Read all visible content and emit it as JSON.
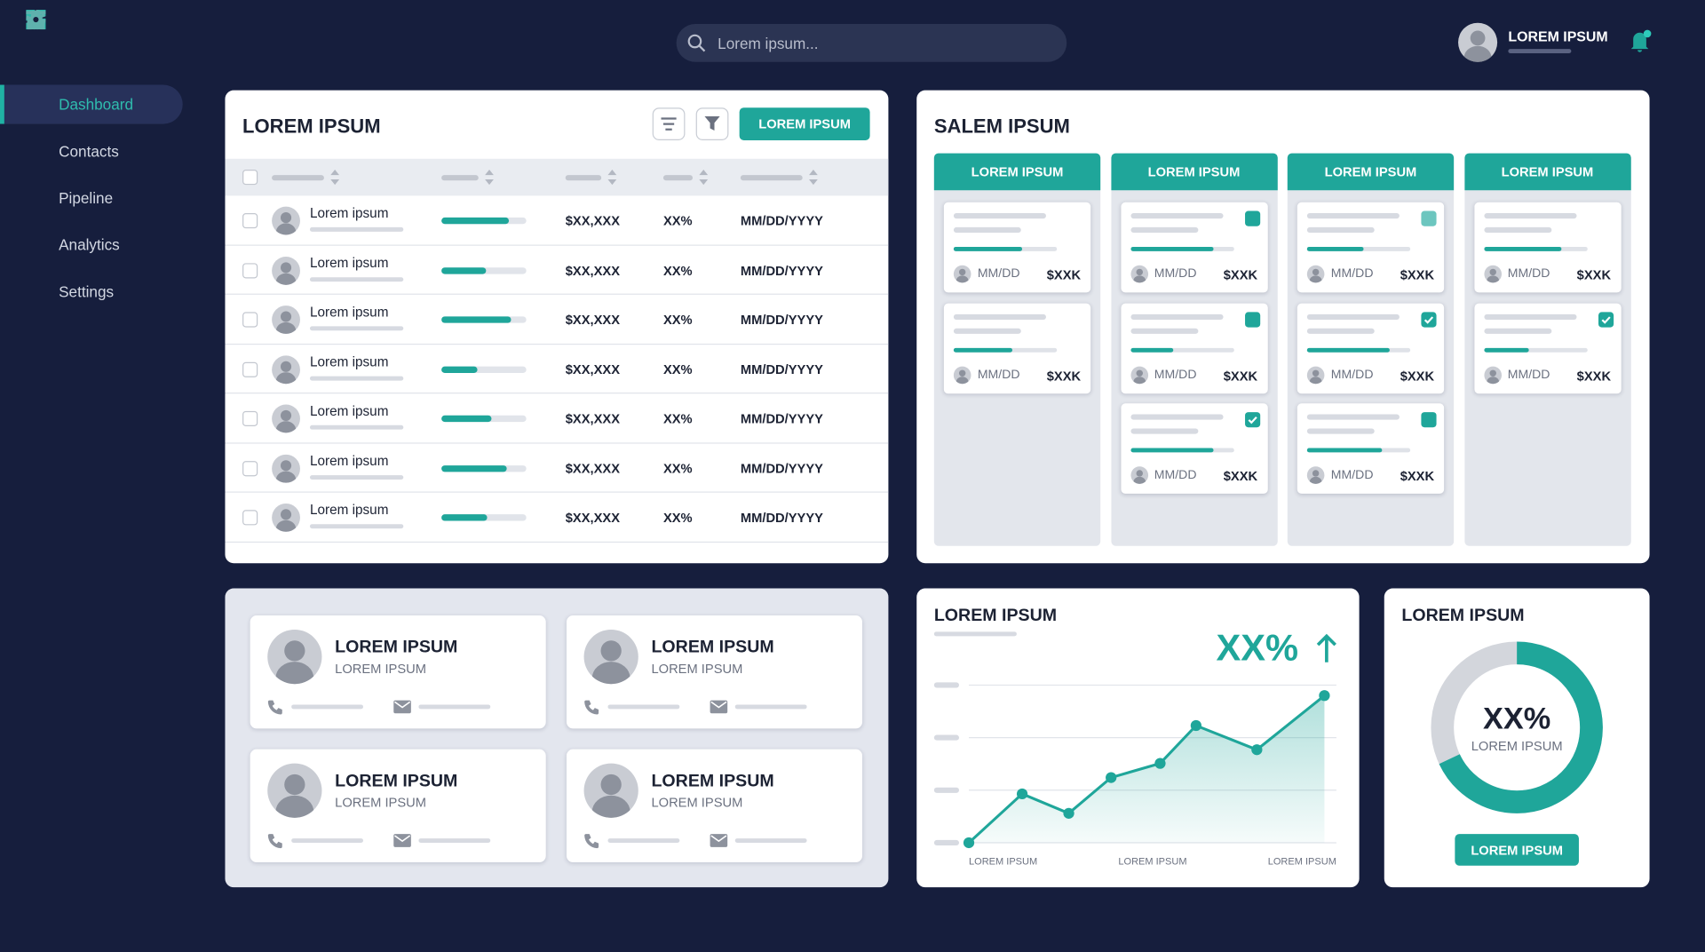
{
  "header": {
    "search_placeholder": "Lorem ipsum...",
    "user_name": "LOREM IPSUM"
  },
  "sidebar": {
    "items": [
      {
        "label": "Dashboard",
        "active": true
      },
      {
        "label": "Contacts"
      },
      {
        "label": "Pipeline"
      },
      {
        "label": "Analytics"
      },
      {
        "label": "Settings"
      }
    ]
  },
  "table": {
    "title": "LOREM IPSUM",
    "button": "LOREM IPSUM",
    "rows": [
      {
        "name": "Lorem ipsum",
        "progress": 79,
        "amount": "$XX,XXX",
        "percent": "XX%",
        "date": "MM/DD/YYYY"
      },
      {
        "name": "Lorem ipsum",
        "progress": 53,
        "amount": "$XX,XXX",
        "percent": "XX%",
        "date": "MM/DD/YYYY"
      },
      {
        "name": "Lorem ipsum",
        "progress": 82,
        "amount": "$XX,XXX",
        "percent": "XX%",
        "date": "MM/DD/YYYY"
      },
      {
        "name": "Lorem ipsum",
        "progress": 42,
        "amount": "$XX,XXX",
        "percent": "XX%",
        "date": "MM/DD/YYYY"
      },
      {
        "name": "Lorem ipsum",
        "progress": 59,
        "amount": "$XX,XXX",
        "percent": "XX%",
        "date": "MM/DD/YYYY"
      },
      {
        "name": "Lorem ipsum",
        "progress": 77,
        "amount": "$XX,XXX",
        "percent": "XX%",
        "date": "MM/DD/YYYY"
      },
      {
        "name": "Lorem ipsum",
        "progress": 54,
        "amount": "$XX,XXX",
        "percent": "XX%",
        "date": "MM/DD/YYYY"
      }
    ]
  },
  "pipeline_board": {
    "title": "SALEM IPSUM",
    "columns": [
      {
        "title": "LOREM IPSUM",
        "cards": [
          {
            "progress": 66,
            "date": "MM/DD",
            "amount": "$XXK"
          },
          {
            "progress": 57,
            "date": "MM/DD",
            "amount": "$XXK"
          }
        ]
      },
      {
        "title": "LOREM IPSUM",
        "cards": [
          {
            "progress": 81,
            "check": "filled",
            "date": "MM/DD",
            "amount": "$XXK"
          },
          {
            "progress": 42,
            "check": "filled",
            "date": "MM/DD",
            "amount": "$XXK"
          },
          {
            "progress": 80,
            "check": "checked",
            "date": "MM/DD",
            "amount": "$XXK"
          }
        ]
      },
      {
        "title": "LOREM IPSUM",
        "cards": [
          {
            "progress": 55,
            "check": "light",
            "date": "MM/DD",
            "amount": "$XXK"
          },
          {
            "progress": 80,
            "check": "checked",
            "date": "MM/DD",
            "amount": "$XXK"
          },
          {
            "progress": 73,
            "check": "filled",
            "date": "MM/DD",
            "amount": "$XXK"
          }
        ]
      },
      {
        "title": "LOREM IPSUM",
        "cards": [
          {
            "progress": 75,
            "date": "MM/DD",
            "amount": "$XXK"
          },
          {
            "progress": 44,
            "check": "checked",
            "date": "MM/DD",
            "amount": "$XXK"
          }
        ]
      }
    ]
  },
  "contacts": {
    "cards": [
      {
        "name": "LOREM IPSUM",
        "subtitle": "LOREM IPSUM"
      },
      {
        "name": "LOREM IPSUM",
        "subtitle": "LOREM IPSUM"
      },
      {
        "name": "LOREM IPSUM",
        "subtitle": "LOREM IPSUM"
      },
      {
        "name": "LOREM IPSUM",
        "subtitle": "LOREM IPSUM"
      }
    ]
  },
  "line_chart": {
    "type": "line",
    "title": "LOREM IPSUM",
    "kpi": "XX%",
    "x_labels": [
      "LOREM IPSUM",
      "LOREM IPSUM",
      "LOREM IPSUM"
    ],
    "x": [
      0,
      1.5,
      2.81,
      4,
      5.38,
      6.39,
      8.1,
      10
    ],
    "values": [
      0,
      0.93,
      0.56,
      1.24,
      1.51,
      2.23,
      1.77,
      2.8
    ],
    "xlim": [
      0,
      10
    ],
    "ylim": [
      0,
      3
    ],
    "yticks": [
      0,
      1,
      2,
      3
    ],
    "grid": true,
    "color": "#1fa69a"
  },
  "donut": {
    "type": "donut",
    "title": "LOREM IPSUM",
    "value": 68,
    "label": "XX%",
    "caption": "LOREM IPSUM",
    "button": "LOREM IPSUM",
    "color": "#1fa69a"
  }
}
